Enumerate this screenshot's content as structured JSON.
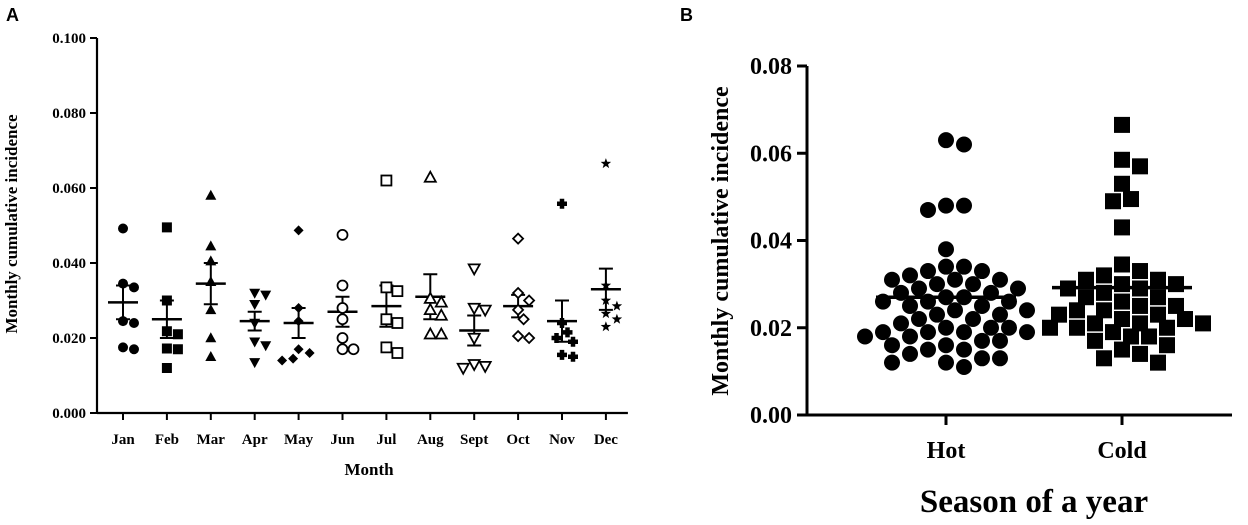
{
  "colors": {
    "ink": "#000000",
    "background": "#ffffff"
  },
  "chart_data": [
    {
      "type": "scatter",
      "panel": "A",
      "xlabel": "Month",
      "ylabel": "Monthly cumulative incidence",
      "ylim": [
        0,
        0.1
      ],
      "yticks": [
        "0.000",
        "0.020",
        "0.040",
        "0.060",
        "0.080",
        "0.100"
      ],
      "categories": [
        "Jan",
        "Feb",
        "Mar",
        "Apr",
        "May",
        "Jun",
        "Jul",
        "Aug",
        "Sept",
        "Oct",
        "Nov",
        "Dec"
      ],
      "grid": false,
      "legend": "none",
      "series": [
        {
          "category": "Jan",
          "marker": "circle-filled",
          "mean": 0.0295,
          "sem": 0.0045,
          "values": [
            0.0492,
            0.0345,
            0.0335,
            0.024,
            0.0245,
            0.0175,
            0.017
          ]
        },
        {
          "category": "Feb",
          "marker": "square-filled",
          "mean": 0.025,
          "sem": 0.005,
          "values": [
            0.0495,
            0.03,
            0.021,
            0.0218,
            0.017,
            0.0172,
            0.012
          ]
        },
        {
          "category": "Mar",
          "marker": "triangle-up-filled",
          "mean": 0.0345,
          "sem": 0.0055,
          "values": [
            0.058,
            0.0445,
            0.0405,
            0.035,
            0.0275,
            0.02,
            0.015
          ]
        },
        {
          "category": "Apr",
          "marker": "triangle-down-filled",
          "mean": 0.0245,
          "sem": 0.0025,
          "values": [
            0.032,
            0.0315,
            0.029,
            0.024,
            0.019,
            0.018,
            0.0135
          ]
        },
        {
          "category": "May",
          "marker": "diamond-filled",
          "mean": 0.024,
          "sem": 0.004,
          "values": [
            0.0487,
            0.028,
            0.0245,
            0.017,
            0.016,
            0.0145,
            0.014
          ]
        },
        {
          "category": "Jun",
          "marker": "circle-open",
          "mean": 0.027,
          "sem": 0.004,
          "values": [
            0.0475,
            0.034,
            0.028,
            0.025,
            0.02,
            0.017,
            0.017
          ]
        },
        {
          "category": "Jul",
          "marker": "square-open",
          "mean": 0.0285,
          "sem": 0.0055,
          "values": [
            0.062,
            0.0335,
            0.0325,
            0.025,
            0.024,
            0.0175,
            0.016
          ]
        },
        {
          "category": "Aug",
          "marker": "triangle-up-open",
          "mean": 0.031,
          "sem": 0.006,
          "values": [
            0.0628,
            0.0305,
            0.0295,
            0.0275,
            0.026,
            0.021,
            0.021
          ]
        },
        {
          "category": "Sept",
          "marker": "triangle-down-open",
          "mean": 0.022,
          "sem": 0.004,
          "values": [
            0.0385,
            0.028,
            0.0275,
            0.02,
            0.013,
            0.0125,
            0.012
          ]
        },
        {
          "category": "Oct",
          "marker": "diamond-open",
          "mean": 0.0285,
          "sem": 0.003,
          "values": [
            0.0465,
            0.032,
            0.03,
            0.0275,
            0.025,
            0.0205,
            0.02
          ]
        },
        {
          "category": "Nov",
          "marker": "cross-filled",
          "mean": 0.0245,
          "sem": 0.0055,
          "values": [
            0.0558,
            0.024,
            0.0215,
            0.02,
            0.019,
            0.0155,
            0.015
          ]
        },
        {
          "category": "Dec",
          "marker": "star-filled",
          "mean": 0.033,
          "sem": 0.0055,
          "values": [
            0.0665,
            0.034,
            0.03,
            0.0285,
            0.0265,
            0.025,
            0.023
          ]
        }
      ]
    },
    {
      "type": "scatter",
      "panel": "B",
      "xlabel": "Season of a year",
      "ylabel": "Monthly cumulative incidence",
      "ylim": [
        0,
        0.08
      ],
      "yticks": [
        "0.00",
        "0.02",
        "0.04",
        "0.06",
        "0.08"
      ],
      "categories": [
        "Hot",
        "Cold"
      ],
      "grid": false,
      "legend": "none",
      "series": [
        {
          "category": "Hot",
          "marker": "circle-filled",
          "mean": 0.027,
          "values": [
            0.063,
            0.062,
            0.048,
            0.048,
            0.047,
            0.038,
            0.034,
            0.034,
            0.033,
            0.033,
            0.032,
            0.031,
            0.031,
            0.031,
            0.03,
            0.03,
            0.029,
            0.029,
            0.028,
            0.028,
            0.027,
            0.027,
            0.026,
            0.026,
            0.026,
            0.025,
            0.025,
            0.024,
            0.024,
            0.023,
            0.023,
            0.022,
            0.022,
            0.021,
            0.02,
            0.02,
            0.02,
            0.019,
            0.019,
            0.019,
            0.019,
            0.018,
            0.018,
            0.017,
            0.017,
            0.016,
            0.016,
            0.015,
            0.015,
            0.014,
            0.013,
            0.013,
            0.012,
            0.012,
            0.011
          ]
        },
        {
          "category": "Cold",
          "marker": "square-filled",
          "mean": 0.0292,
          "values": [
            0.0665,
            0.0585,
            0.057,
            0.053,
            0.0495,
            0.049,
            0.043,
            0.0345,
            0.033,
            0.032,
            0.031,
            0.031,
            0.03,
            0.03,
            0.029,
            0.029,
            0.028,
            0.027,
            0.027,
            0.026,
            0.025,
            0.025,
            0.024,
            0.024,
            0.023,
            0.023,
            0.022,
            0.022,
            0.021,
            0.021,
            0.021,
            0.02,
            0.02,
            0.02,
            0.019,
            0.018,
            0.018,
            0.017,
            0.016,
            0.015,
            0.014,
            0.013,
            0.012
          ]
        }
      ]
    }
  ]
}
